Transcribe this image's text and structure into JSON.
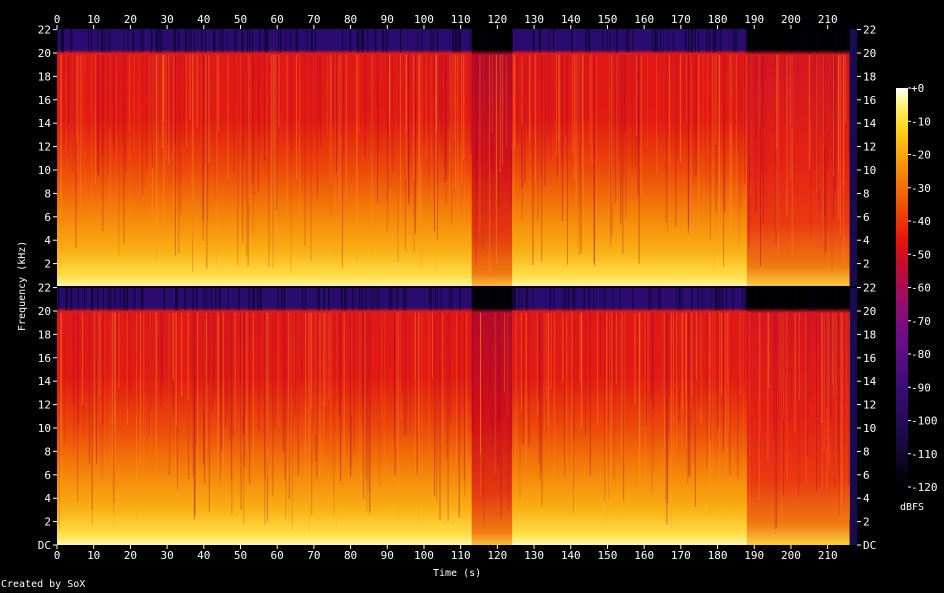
{
  "chart_data": {
    "type": "heatmap",
    "subtype": "spectrogram",
    "channels": 2,
    "x_label": "Time (s)",
    "y_label": "Frequency (kHz)",
    "x_ticks": [
      0,
      10,
      20,
      30,
      40,
      50,
      60,
      70,
      80,
      90,
      100,
      110,
      120,
      130,
      140,
      150,
      160,
      170,
      180,
      190,
      200,
      210
    ],
    "x_range": [
      0,
      218
    ],
    "y_ticks": [
      "DC",
      "2",
      "4",
      "6",
      "8",
      "10",
      "12",
      "14",
      "16",
      "18",
      "20",
      "22"
    ],
    "y_range_khz": [
      0,
      22.05
    ],
    "colorbar": {
      "label": "dBFS",
      "ticks": [
        "+0",
        "-10",
        "-20",
        "-30",
        "-40",
        "-50",
        "-60",
        "-70",
        "-80",
        "-90",
        "-100",
        "-110",
        "-120"
      ],
      "range": [
        -120,
        0
      ]
    },
    "features": {
      "lowpass_cutoff_khz": 20,
      "quiet_section_s": [
        113,
        124
      ],
      "late_section_start_s": 188,
      "end_s": 216
    }
  },
  "footer": "Created by SoX",
  "colors": {
    "background": "#000000",
    "text": "#ffffff",
    "palette": [
      "#000000",
      "#1a0a45",
      "#3a0c78",
      "#6a0e88",
      "#9a0c6a",
      "#c00a30",
      "#e8150a",
      "#f25a05",
      "#f99b0a",
      "#fcd61c",
      "#fdf57a",
      "#ffffff"
    ]
  }
}
